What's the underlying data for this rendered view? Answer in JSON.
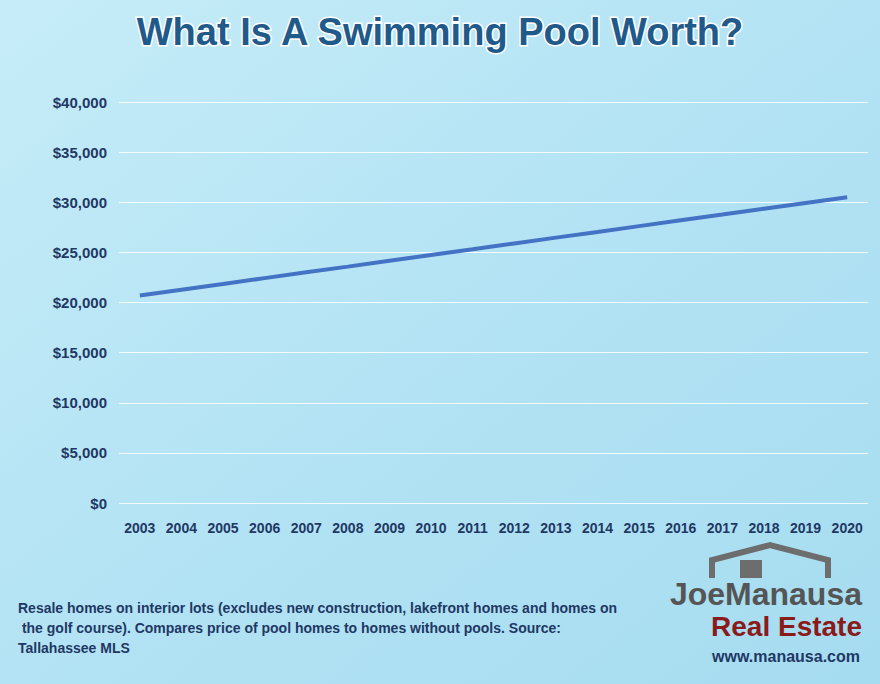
{
  "chart_data": {
    "type": "line",
    "title": "What Is A Swimming Pool Worth?",
    "categories": [
      "2003",
      "2004",
      "2005",
      "2006",
      "2007",
      "2008",
      "2009",
      "2010",
      "2011",
      "2012",
      "2013",
      "2014",
      "2015",
      "2016",
      "2017",
      "2018",
      "2019",
      "2020"
    ],
    "values": [
      20700,
      21280,
      21850,
      22430,
      23010,
      23580,
      24160,
      24740,
      25310,
      25890,
      26470,
      27040,
      27620,
      28200,
      28770,
      29350,
      29930,
      30500
    ],
    "color": "#4472c4",
    "ylim": [
      0,
      40000
    ],
    "yticks": [
      {
        "value": 0,
        "label": "$0"
      },
      {
        "value": 5000,
        "label": "$5,000"
      },
      {
        "value": 10000,
        "label": "$10,000"
      },
      {
        "value": 15000,
        "label": "$15,000"
      },
      {
        "value": 20000,
        "label": "$20,000"
      },
      {
        "value": 25000,
        "label": "$25,000"
      },
      {
        "value": 30000,
        "label": "$30,000"
      },
      {
        "value": 35000,
        "label": "$35,000"
      },
      {
        "value": 40000,
        "label": "$40,000"
      }
    ],
    "grid": true,
    "annotations": [
      "Resale homes on interior lots (excludes new construction, lakefront homes and homes on the golf course). Compares price of pool homes to homes without pools. Source: Tallahassee MLS",
      "JoeManausa",
      "Real Estate",
      "www.manausa.com"
    ]
  }
}
